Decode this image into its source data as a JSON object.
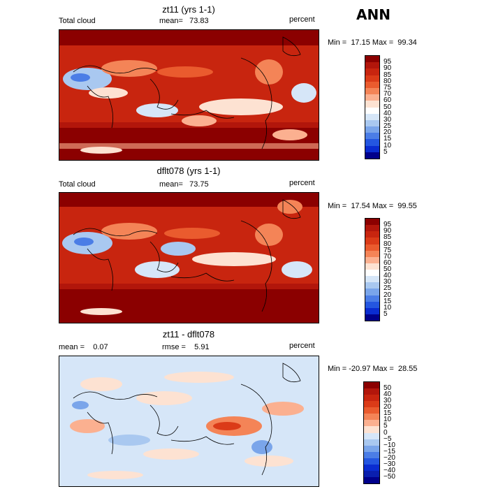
{
  "season": "ANN",
  "units": "percent",
  "panels": [
    {
      "title": "zt11 (yrs 1-1)",
      "field": "Total cloud",
      "mean_text": "mean=   73.83",
      "minmax_text": "Min =  17.15 Max =  99.34",
      "levels": [
        "95",
        "90",
        "85",
        "80",
        "75",
        "70",
        "60",
        "50",
        "40",
        "30",
        "25",
        "20",
        "15",
        "10",
        "5"
      ]
    },
    {
      "title": "dflt078 (yrs 1-1)",
      "field": "Total cloud",
      "mean_text": "mean=   73.75",
      "minmax_text": "Min =  17.54 Max =  99.55",
      "levels": [
        "95",
        "90",
        "85",
        "80",
        "75",
        "70",
        "60",
        "50",
        "40",
        "30",
        "25",
        "20",
        "15",
        "10",
        "5"
      ]
    },
    {
      "title": "zt11 - dflt078",
      "mean_text": "mean =    0.07",
      "rmse_text": "rmse =    5.91",
      "minmax_text": "Min = -20.97 Max =  28.55",
      "levels": [
        "50",
        "40",
        "30",
        "20",
        "15",
        "10",
        "5",
        "0",
        "−5",
        "−10",
        "−15",
        "−20",
        "−30",
        "−40",
        "−50"
      ]
    }
  ],
  "colors": {
    "abs_scale": [
      "#8b0000",
      "#b2160b",
      "#c8250f",
      "#db3b18",
      "#ea5b2e",
      "#f48457",
      "#fbb090",
      "#fde2d2",
      "#ffffff",
      "#d6e6f8",
      "#a9c8f0",
      "#7aa5ea",
      "#4b7de6",
      "#2456e0",
      "#0a2cd1",
      "#00008b"
    ],
    "diff_scale": [
      "#8b0000",
      "#b2160b",
      "#c8250f",
      "#db3b18",
      "#ea5b2e",
      "#f48457",
      "#fbb090",
      "#fde2d2",
      "#d6e6f8",
      "#a9c8f0",
      "#7aa5ea",
      "#4b7de6",
      "#2456e0",
      "#0a2cd1",
      "#0a1fae",
      "#00008b"
    ]
  }
}
